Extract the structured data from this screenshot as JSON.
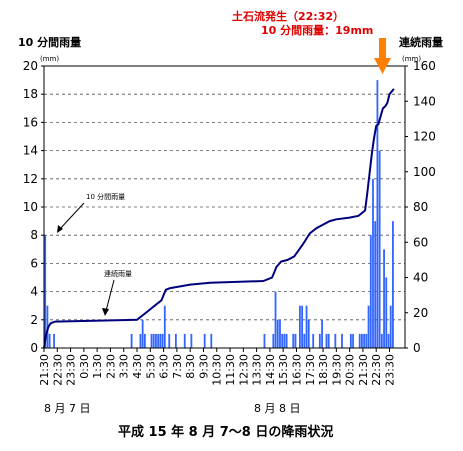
{
  "chart_data": {
    "type": "bar",
    "title": "平成 15 年 8 月 7～8 日の降雨状況",
    "y_left_label": "10 分間雨量",
    "y_right_label": "連続雨量",
    "left_unit": "(mm)",
    "right_unit": "(mm)",
    "y_left_lim": [
      0,
      20
    ],
    "y_left_ticks": [
      0,
      2,
      4,
      6,
      8,
      10,
      12,
      14,
      16,
      18,
      20
    ],
    "y_right_lim": [
      0,
      160
    ],
    "y_right_ticks": [
      0,
      20,
      40,
      60,
      80,
      100,
      120,
      140,
      160
    ],
    "grid": "horizontal dashed",
    "x_ticks": [
      "21:30",
      "22:30",
      "23:30",
      "0:30",
      "1:30",
      "2:30",
      "3:30",
      "4:30",
      "5:30",
      "6:30",
      "7:30",
      "8:30",
      "9:30",
      "10:30",
      "11:30",
      "12:30",
      "13:30",
      "14:30",
      "15:30",
      "16:30",
      "17:30",
      "18:30",
      "19:30",
      "20:30",
      "21:30",
      "22:30",
      "23:30"
    ],
    "date_labels": [
      "8 月 7 日",
      "8 月 8 日"
    ],
    "annotations": {
      "event_line1": "土石流発生（22:32）",
      "event_line2": "10 分間雨量：19mm",
      "bar_label": "10 分間雨量",
      "line_label": "連続雨量"
    },
    "x_start": "21:30 (8月7日)",
    "x_step_minutes": 10,
    "bars_10min_mm": [
      {
        "t": "21:30",
        "v": 8
      },
      {
        "t": "21:40",
        "v": 3
      },
      {
        "t": "21:50",
        "v": 1
      },
      {
        "t": "22:10",
        "v": 1
      },
      {
        "t": "4:00",
        "v": 1
      },
      {
        "t": "4:40",
        "v": 1
      },
      {
        "t": "4:50",
        "v": 2
      },
      {
        "t": "5:00",
        "v": 1
      },
      {
        "t": "5:30",
        "v": 1
      },
      {
        "t": "5:40",
        "v": 1
      },
      {
        "t": "5:50",
        "v": 1
      },
      {
        "t": "6:00",
        "v": 1
      },
      {
        "t": "6:10",
        "v": 1
      },
      {
        "t": "6:20",
        "v": 1
      },
      {
        "t": "6:30",
        "v": 3
      },
      {
        "t": "6:50",
        "v": 1
      },
      {
        "t": "7:20",
        "v": 1
      },
      {
        "t": "8:00",
        "v": 1
      },
      {
        "t": "8:30",
        "v": 1
      },
      {
        "t": "9:30",
        "v": 1
      },
      {
        "t": "10:00",
        "v": 1
      },
      {
        "t": "14:00",
        "v": 1
      },
      {
        "t": "14:40",
        "v": 1
      },
      {
        "t": "14:50",
        "v": 4
      },
      {
        "t": "15:00",
        "v": 2
      },
      {
        "t": "15:10",
        "v": 2
      },
      {
        "t": "15:20",
        "v": 1
      },
      {
        "t": "15:30",
        "v": 1
      },
      {
        "t": "15:40",
        "v": 1
      },
      {
        "t": "16:10",
        "v": 1
      },
      {
        "t": "16:20",
        "v": 1
      },
      {
        "t": "16:40",
        "v": 3
      },
      {
        "t": "16:50",
        "v": 3
      },
      {
        "t": "17:00",
        "v": 1
      },
      {
        "t": "17:10",
        "v": 3
      },
      {
        "t": "17:20",
        "v": 2
      },
      {
        "t": "17:40",
        "v": 1
      },
      {
        "t": "18:10",
        "v": 1
      },
      {
        "t": "18:20",
        "v": 2
      },
      {
        "t": "18:40",
        "v": 1
      },
      {
        "t": "18:50",
        "v": 1
      },
      {
        "t": "19:20",
        "v": 1
      },
      {
        "t": "19:50",
        "v": 1
      },
      {
        "t": "20:30",
        "v": 1
      },
      {
        "t": "20:40",
        "v": 1
      },
      {
        "t": "21:10",
        "v": 1
      },
      {
        "t": "21:20",
        "v": 1
      },
      {
        "t": "21:30",
        "v": 1
      },
      {
        "t": "21:40",
        "v": 1
      },
      {
        "t": "21:50",
        "v": 3
      },
      {
        "t": "22:00",
        "v": 8
      },
      {
        "t": "22:10",
        "v": 12
      },
      {
        "t": "22:20",
        "v": 9
      },
      {
        "t": "22:30",
        "v": 19
      },
      {
        "t": "22:40",
        "v": 14
      },
      {
        "t": "22:50",
        "v": 1
      },
      {
        "t": "23:00",
        "v": 7
      },
      {
        "t": "23:10",
        "v": 5
      },
      {
        "t": "23:20",
        "v": 1
      },
      {
        "t": "23:30",
        "v": 3
      },
      {
        "t": "23:40",
        "v": 9
      }
    ],
    "cumulative_mm": [
      {
        "t": "21:30",
        "v": 0
      },
      {
        "t": "21:40",
        "v": 8
      },
      {
        "t": "21:50",
        "v": 12
      },
      {
        "t": "22:00",
        "v": 14
      },
      {
        "t": "22:20",
        "v": 15
      },
      {
        "t": "4:30",
        "v": 16
      },
      {
        "t": "5:00",
        "v": 19
      },
      {
        "t": "5:20",
        "v": 21
      },
      {
        "t": "5:50",
        "v": 24
      },
      {
        "t": "6:20",
        "v": 27
      },
      {
        "t": "6:40",
        "v": 33
      },
      {
        "t": "7:00",
        "v": 34
      },
      {
        "t": "8:30",
        "v": 36
      },
      {
        "t": "10:00",
        "v": 37
      },
      {
        "t": "14:00",
        "v": 38
      },
      {
        "t": "14:40",
        "v": 40
      },
      {
        "t": "15:00",
        "v": 46
      },
      {
        "t": "15:20",
        "v": 49
      },
      {
        "t": "15:50",
        "v": 50
      },
      {
        "t": "16:20",
        "v": 52
      },
      {
        "t": "17:00",
        "v": 59
      },
      {
        "t": "17:30",
        "v": 65
      },
      {
        "t": "18:00",
        "v": 68
      },
      {
        "t": "18:30",
        "v": 70
      },
      {
        "t": "19:00",
        "v": 72
      },
      {
        "t": "19:30",
        "v": 73
      },
      {
        "t": "20:30",
        "v": 74
      },
      {
        "t": "21:10",
        "v": 75
      },
      {
        "t": "21:40",
        "v": 78
      },
      {
        "t": "21:50",
        "v": 88
      },
      {
        "t": "22:10",
        "v": 110
      },
      {
        "t": "22:20",
        "v": 119
      },
      {
        "t": "22:30",
        "v": 126
      },
      {
        "t": "22:40",
        "v": 127
      },
      {
        "t": "23:00",
        "v": 136
      },
      {
        "t": "23:10",
        "v": 137
      },
      {
        "t": "23:20",
        "v": 139
      },
      {
        "t": "23:30",
        "v": 144
      },
      {
        "t": "23:50",
        "v": 147
      }
    ],
    "colors": {
      "bars": "#3366ff",
      "line": "#00007f",
      "event_text": "#e00000",
      "event_arrow": "#ff7f00"
    }
  }
}
